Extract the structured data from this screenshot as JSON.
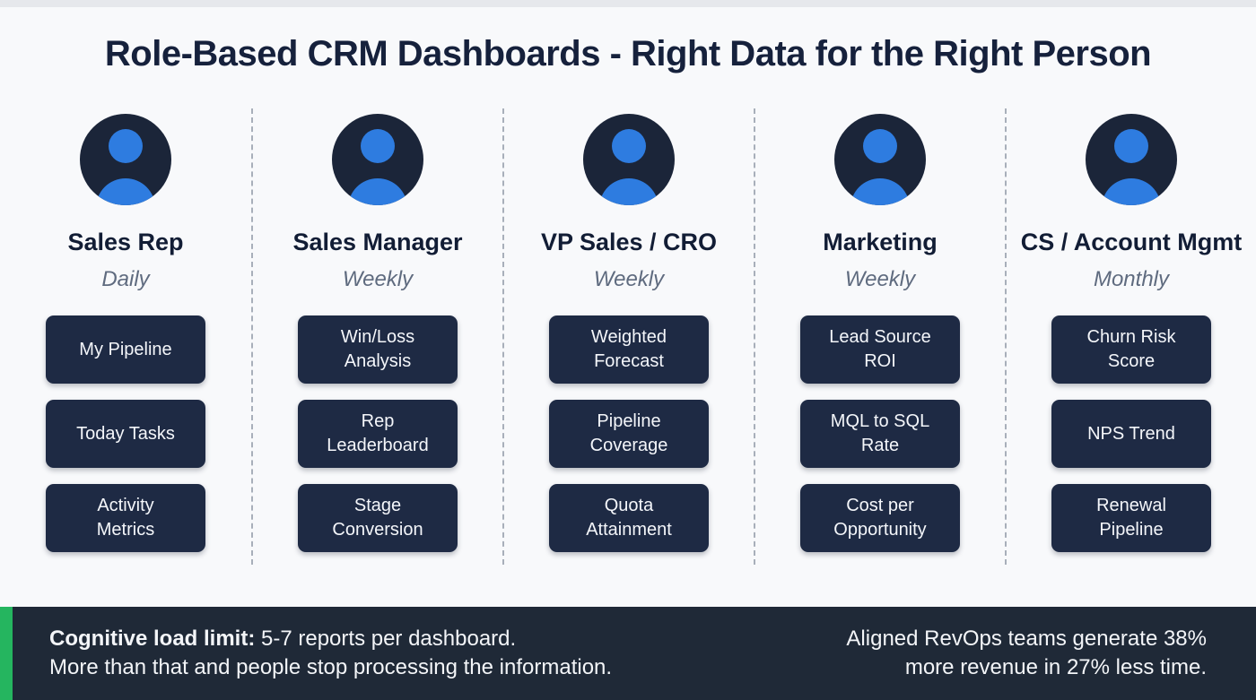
{
  "title": "Role-Based CRM Dashboards - Right Data for the Right Person",
  "columns": [
    {
      "role": "Sales Rep",
      "frequency": "Daily",
      "cards": [
        "My Pipeline",
        "Today Tasks",
        "Activity Metrics"
      ]
    },
    {
      "role": "Sales Manager",
      "frequency": "Weekly",
      "cards": [
        "Win/Loss Analysis",
        "Rep Leaderboard",
        "Stage Conversion"
      ]
    },
    {
      "role": "VP Sales / CRO",
      "frequency": "Weekly",
      "cards": [
        "Weighted Forecast",
        "Pipeline Coverage",
        "Quota Attainment"
      ]
    },
    {
      "role": "Marketing",
      "frequency": "Weekly",
      "cards": [
        "Lead Source ROI",
        "MQL to SQL Rate",
        "Cost per Opportunity"
      ]
    },
    {
      "role": "CS / Account Mgmt",
      "frequency": "Monthly",
      "cards": [
        "Churn Risk Score",
        "NPS Trend",
        "Renewal Pipeline"
      ]
    }
  ],
  "footer": {
    "left_bold": "Cognitive load limit:",
    "left_text": " 5-7 reports per dashboard.",
    "left_line2": "More than that and people stop processing the information.",
    "right_line1": "Aligned RevOps teams generate 38%",
    "right_line2": "more revenue in 27% less time."
  },
  "colors": {
    "title_text": "#16213c",
    "card_bg": "#1e2a44",
    "footer_bg": "#1f2937",
    "accent_green": "#25b55f",
    "avatar_bg": "#1b2539",
    "avatar_blue": "#2e7ce0",
    "frequency_gray": "#5f6b7f",
    "divider_gray": "#a8afba"
  }
}
